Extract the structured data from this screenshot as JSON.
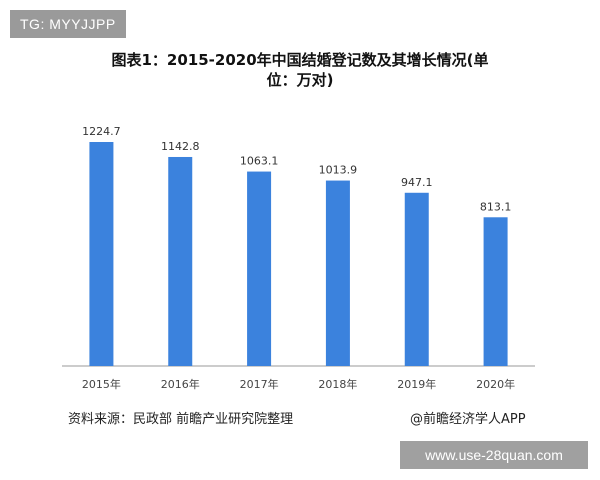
{
  "badge_top_left": "TG: MYYJJPP",
  "badge_bottom_right": "www.use-28quan.com",
  "footer": {
    "source": "资料来源：民政部 前瞻产业研究院整理",
    "brand": "@前瞻经济学人APP"
  },
  "colors": {
    "bar": "#3b82dd",
    "axis": "#999999"
  },
  "chart_data": {
    "type": "bar",
    "title": "图表1：2015-2020年中国结婚登记数及其增长情况(单位：万对)",
    "title_lines": [
      "图表1：2015-2020年中国结婚登记数及其增长情况(单",
      "位：万对)"
    ],
    "categories": [
      "2015年",
      "2016年",
      "2017年",
      "2018年",
      "2019年",
      "2020年"
    ],
    "values": [
      1224.7,
      1142.8,
      1063.1,
      1013.9,
      947.1,
      813.1
    ],
    "value_labels": [
      "1224.7",
      "1142.8",
      "1063.1",
      "1013.9",
      "947.1",
      "813.1"
    ],
    "ylim": [
      0,
      1224.7
    ],
    "grid": false,
    "legend": "none"
  }
}
